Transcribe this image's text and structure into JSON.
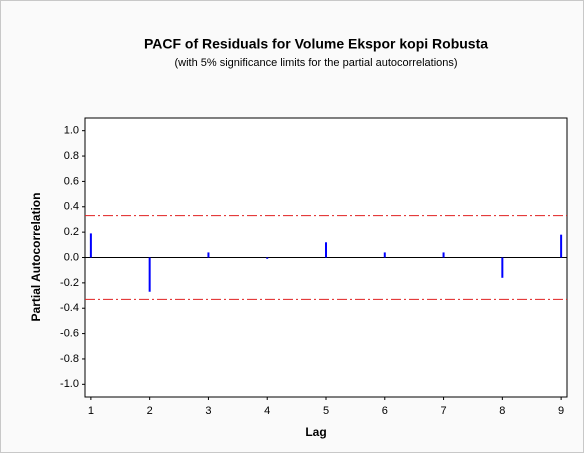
{
  "chart_data": {
    "type": "pacf",
    "title": "PACF of Residuals for Volume Ekspor kopi Robusta",
    "subtitle": "(with 5% significance limits for the partial autocorrelations)",
    "x_label": "Lag",
    "y_label": "Partial Autocorrelation",
    "x": [
      1,
      2,
      3,
      4,
      5,
      6,
      7,
      8,
      9
    ],
    "values": [
      0.19,
      -0.27,
      0.04,
      -0.01,
      0.12,
      0.04,
      0.04,
      -0.16,
      0.18
    ],
    "color": "#0000ff",
    "significance_limits": [
      -0.33,
      0.33
    ],
    "limit_color": "#e02020",
    "xlim": [
      0.9,
      9.1
    ],
    "xticks": [
      1,
      2,
      3,
      4,
      5,
      6,
      7,
      8,
      9
    ],
    "ylim": [
      -1.1,
      1.1
    ],
    "yticks": [
      {
        "value": 1,
        "label": "1.0"
      },
      0.8,
      0.6,
      0.4,
      0.2,
      {
        "value": 0,
        "label": "0.0"
      },
      -0.2,
      -0.4,
      -0.6,
      -0.8,
      {
        "value": -1,
        "label": "-1.0"
      }
    ]
  }
}
